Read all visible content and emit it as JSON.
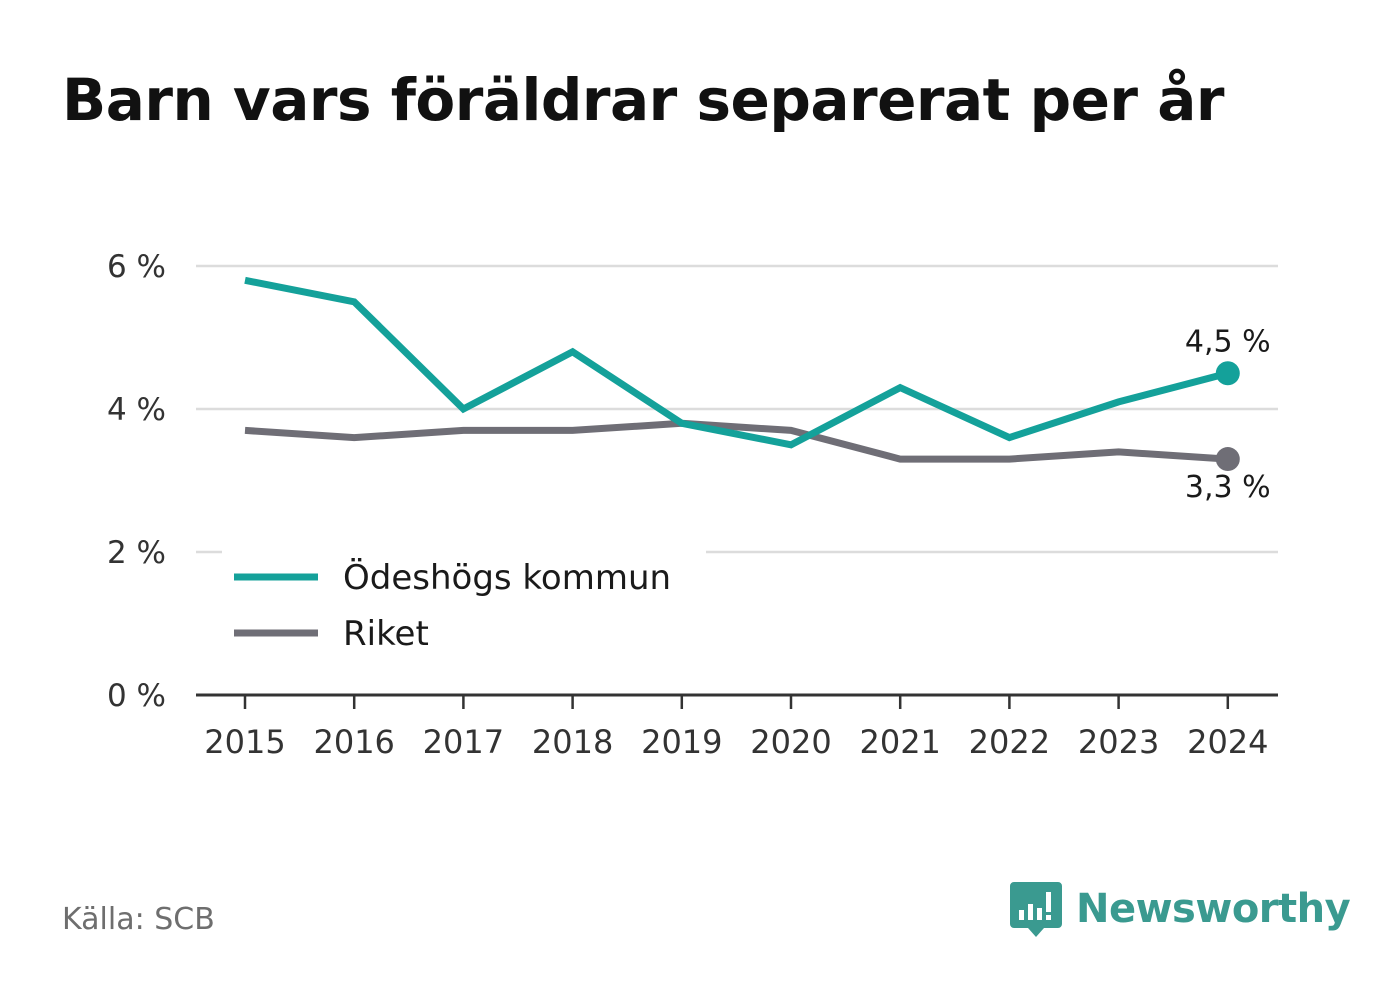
{
  "title": "Barn vars föräldrar separerat per år",
  "source": "Källa: SCB",
  "logo": {
    "text": "Newsworthy",
    "icon": "bar-chart-speech-bubble-icon",
    "color": "#3a9a90"
  },
  "chart_data": {
    "type": "line",
    "x": [
      "2015",
      "2016",
      "2017",
      "2018",
      "2019",
      "2020",
      "2021",
      "2022",
      "2023",
      "2024"
    ],
    "series": [
      {
        "name": "Ödeshögs kommun",
        "color": "#14a19a",
        "values": [
          5.8,
          5.5,
          4.0,
          4.8,
          3.8,
          3.5,
          4.3,
          3.6,
          4.1,
          4.5
        ],
        "end_label": "4,5 %"
      },
      {
        "name": "Riket",
        "color": "#6f6e76",
        "values": [
          3.7,
          3.6,
          3.7,
          3.7,
          3.8,
          3.7,
          3.3,
          3.3,
          3.4,
          3.3
        ],
        "end_label": "3,3 %"
      }
    ],
    "yticks": [
      {
        "value": 0,
        "label": "0 %"
      },
      {
        "value": 2,
        "label": "2 %"
      },
      {
        "value": 4,
        "label": "4 %"
      },
      {
        "value": 6,
        "label": "6 %"
      }
    ],
    "ylim": [
      0,
      6
    ],
    "grid": true,
    "legend_position": "bottom-left"
  }
}
